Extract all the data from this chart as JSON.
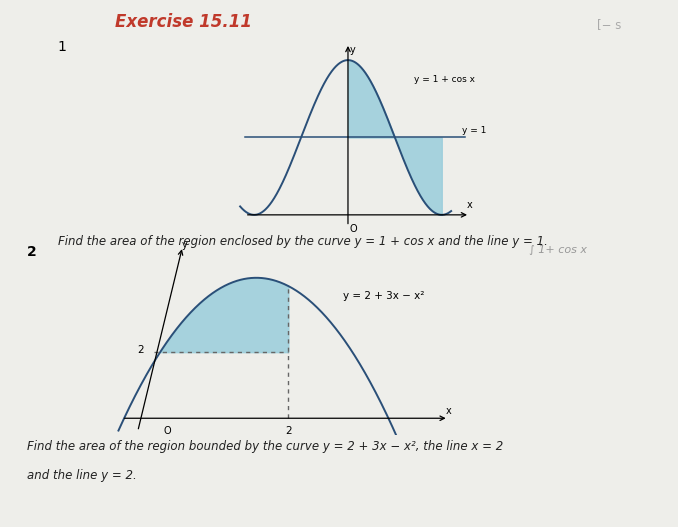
{
  "title": "Exercise 15.11",
  "title_color": "#c0392b",
  "title_fontsize": 12,
  "bg_color": "#eeeeea",
  "problem1": {
    "label": "1",
    "curve_label": "y = 1 + cos x",
    "line_label": "y = 1",
    "shade_color": "#9ecfdc",
    "curve_color": "#2a4f78",
    "line_color": "#2a4f78",
    "text": "Find the area of the region enclosed by the curve y = 1 + cos x and the line y = 1."
  },
  "problem2": {
    "label": "2",
    "curve_label": "y = 2 + 3x − x²",
    "shade_color": "#9ecfdc",
    "curve_color": "#2a4f78",
    "dash_color": "#666666",
    "text1": "Find the area of the region bounded by the curve y = 2 + 3x − x², the line x = 2",
    "text2": "and the line y = 2."
  },
  "right_text": "[− s",
  "integral_text": "∫ 1+ cos x"
}
